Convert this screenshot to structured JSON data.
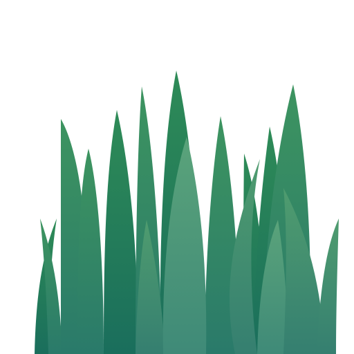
{
  "scene": {
    "subject": "grass-tuft-illustration",
    "background": "#ffffff",
    "palette": {
      "dark_green": "#1e7a52",
      "mid_green": "#2e8b57",
      "light_green": "#4a9a6e",
      "pale_green": "#5aa37a",
      "teal_base": "#2a7a6a",
      "deep_teal": "#1a6e5c"
    }
  }
}
